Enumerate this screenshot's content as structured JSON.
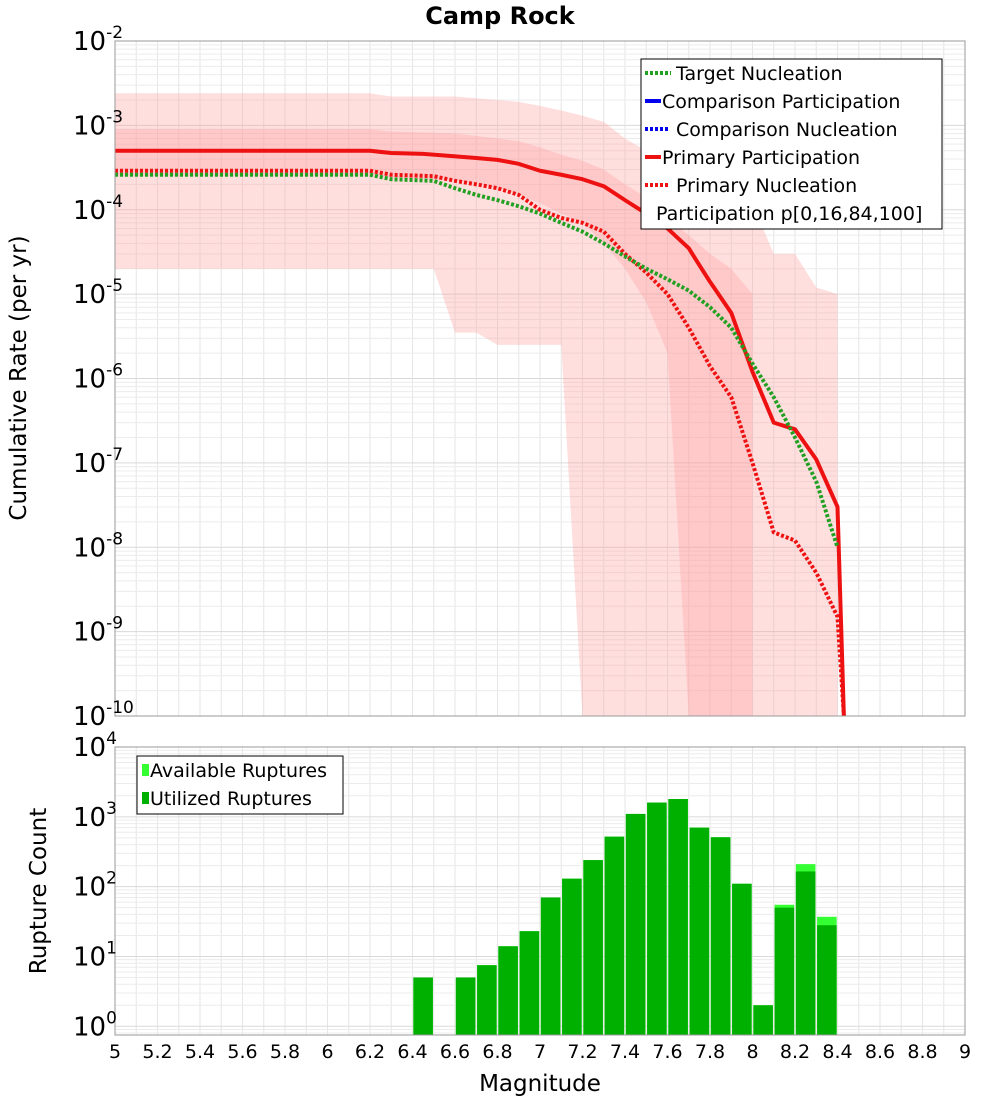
{
  "chart_data": [
    {
      "type": "line",
      "title": "Camp Rock",
      "xlabel": "",
      "ylabel": "Cumulative Rate (per yr)",
      "xlim": [
        5,
        9
      ],
      "ylim": [
        1e-10,
        0.01
      ],
      "yscale": "log",
      "grid": true,
      "legend_position": "top-right",
      "yticks": [
        {
          "base": "10",
          "exp": "-10"
        },
        {
          "base": "10",
          "exp": "-9"
        },
        {
          "base": "10",
          "exp": "-8"
        },
        {
          "base": "10",
          "exp": "-7"
        },
        {
          "base": "10",
          "exp": "-6"
        },
        {
          "base": "10",
          "exp": "-5"
        },
        {
          "base": "10",
          "exp": "-4"
        },
        {
          "base": "10",
          "exp": "-3"
        },
        {
          "base": "10",
          "exp": "-2"
        }
      ],
      "legend": [
        {
          "label": "Target Nucleation",
          "color": "#22a022",
          "style": "dotted"
        },
        {
          "label": "Comparison Participation",
          "color": "#0000ee",
          "style": "solid"
        },
        {
          "label": " Comparison Nucleation",
          "color": "#0000ee",
          "style": "dotted"
        },
        {
          "label": "Primary Participation",
          "color": "#ee1111",
          "style": "solid"
        },
        {
          "label": " Primary Nucleation",
          "color": "#ee1111",
          "style": "dotted"
        },
        {
          "label": "Participation p[0,16,84,100]",
          "color": "#ffffff",
          "style": "none"
        }
      ],
      "bands": [
        {
          "name": "p0-p100",
          "color": "#ff9999",
          "opacity": 0.32,
          "x": [
            5,
            6.2,
            6.3,
            6.5,
            6.6,
            6.7,
            6.8,
            6.9,
            7.0,
            7.1,
            7.2,
            7.3,
            7.4,
            7.5,
            7.6,
            7.7,
            7.8,
            7.9,
            8.0,
            8.1,
            8.2,
            8.3,
            8.4
          ],
          "upper": [
            0.0024,
            0.0024,
            0.0022,
            0.0022,
            0.0022,
            0.0021,
            0.002,
            0.0019,
            0.0017,
            0.0015,
            0.0013,
            0.0011,
            0.0007,
            0.0005,
            0.0003,
            0.0002,
            0.00018,
            0.00013,
            0.00012,
            3e-05,
            3e-05,
            1.2e-05,
            1e-05
          ],
          "lower": [
            2e-05,
            2e-05,
            2e-05,
            2e-05,
            3.5e-06,
            3.5e-06,
            2.5e-06,
            2.5e-06,
            2.5e-06,
            2.5e-06,
            1e-10,
            1e-10,
            1e-10,
            1e-10,
            1e-10,
            1e-10,
            1e-10,
            1e-10,
            1e-10,
            1e-10,
            1e-10,
            1e-10,
            1e-10
          ]
        },
        {
          "name": "p16-p84",
          "color": "#ff9999",
          "opacity": 0.3,
          "x": [
            5,
            6.2,
            6.3,
            6.6,
            6.7,
            6.8,
            6.9,
            7.0,
            7.1,
            7.2,
            7.3,
            7.4,
            7.5,
            7.6,
            7.7,
            7.8,
            7.9,
            8.0
          ],
          "upper": [
            0.0009,
            0.0009,
            0.00085,
            0.0008,
            0.00075,
            0.0007,
            0.00065,
            0.00055,
            0.00045,
            0.00038,
            0.0003,
            0.0002,
            0.00014,
            8e-05,
            5e-05,
            3e-05,
            2e-05,
            1e-05
          ],
          "lower": [
            0.00025,
            0.00025,
            0.00024,
            0.00022,
            0.0002,
            0.00018,
            0.00015,
            0.00012,
            9e-05,
            7e-05,
            4e-05,
            2e-05,
            8e-06,
            2e-06,
            1e-10,
            1e-10,
            1e-10,
            1e-10
          ]
        }
      ],
      "series": [
        {
          "name": "Primary Participation",
          "color": "#ee1111",
          "style": "solid",
          "x": [
            5,
            6.2,
            6.3,
            6.45,
            6.55,
            6.7,
            6.8,
            6.9,
            7.0,
            7.1,
            7.2,
            7.3,
            7.4,
            7.5,
            7.6,
            7.7,
            7.75,
            7.8,
            7.9,
            8.0,
            8.1,
            8.2,
            8.3,
            8.4,
            8.43
          ],
          "y": [
            0.0005,
            0.0005,
            0.00047,
            0.00046,
            0.00044,
            0.00041,
            0.00039,
            0.00035,
            0.00029,
            0.00026,
            0.00023,
            0.00019,
            0.00013,
            9e-05,
            6e-05,
            3.5e-05,
            2.2e-05,
            1.4e-05,
            6e-06,
            1.2e-06,
            3e-07,
            2.5e-07,
            1.1e-07,
            3e-08,
            1e-10
          ]
        },
        {
          "name": "Primary Nucleation",
          "color": "#ee1111",
          "style": "dotted",
          "x": [
            5,
            6.2,
            6.3,
            6.5,
            6.6,
            6.7,
            6.8,
            6.9,
            7.0,
            7.1,
            7.2,
            7.3,
            7.4,
            7.5,
            7.6,
            7.7,
            7.8,
            7.9,
            8.0,
            8.1,
            8.2,
            8.3,
            8.4,
            8.43
          ],
          "y": [
            0.00029,
            0.00029,
            0.00026,
            0.00025,
            0.00022,
            0.0002,
            0.00018,
            0.00015,
            0.0001,
            8e-05,
            7e-05,
            5.5e-05,
            3e-05,
            1.8e-05,
            1e-05,
            4e-06,
            1.4e-06,
            6e-07,
            1e-07,
            1.5e-08,
            1.2e-08,
            5e-09,
            1.5e-09,
            1e-10
          ]
        },
        {
          "name": "Target Nucleation",
          "color": "#22a022",
          "style": "dotted",
          "x": [
            5,
            6.2,
            6.3,
            6.5,
            6.6,
            6.7,
            6.8,
            6.9,
            7.0,
            7.1,
            7.2,
            7.3,
            7.4,
            7.5,
            7.6,
            7.7,
            7.8,
            7.9,
            8.0,
            8.1,
            8.2,
            8.3,
            8.4
          ],
          "y": [
            0.00026,
            0.00026,
            0.00023,
            0.00022,
            0.00018,
            0.00015,
            0.00013,
            0.00011,
            9e-05,
            7e-05,
            5.5e-05,
            4e-05,
            2.8e-05,
            2e-05,
            1.5e-05,
            1.1e-05,
            7e-06,
            4e-06,
            1.5e-06,
            6e-07,
            2e-07,
            6e-08,
            1e-08
          ]
        }
      ]
    },
    {
      "type": "bar",
      "title": "",
      "xlabel": "Magnitude",
      "ylabel": "Rupture Count",
      "xlim": [
        5,
        9
      ],
      "ylim": [
        0.75,
        10000
      ],
      "yscale": "log",
      "grid": true,
      "legend_position": "top-left",
      "xticks": [
        "5",
        "5.2",
        "5.4",
        "5.6",
        "5.8",
        "6",
        "6.2",
        "6.4",
        "6.6",
        "6.8",
        "7",
        "7.2",
        "7.4",
        "7.6",
        "7.8",
        "8",
        "8.2",
        "8.4",
        "8.6",
        "8.8",
        "9"
      ],
      "yticks": [
        {
          "base": "10",
          "exp": "0"
        },
        {
          "base": "10",
          "exp": "1"
        },
        {
          "base": "10",
          "exp": "2"
        },
        {
          "base": "10",
          "exp": "3"
        },
        {
          "base": "10",
          "exp": "4"
        }
      ],
      "legend": [
        {
          "label": "Available Ruptures",
          "color": "#33ff33"
        },
        {
          "label": "Utilized Ruptures",
          "color": "#00b000"
        }
      ],
      "categories": [
        6.45,
        6.65,
        6.75,
        6.85,
        6.95,
        7.05,
        7.15,
        7.25,
        7.35,
        7.45,
        7.55,
        7.65,
        7.75,
        7.85,
        7.95,
        8.05,
        8.15,
        8.25,
        8.35
      ],
      "series": [
        {
          "name": "Available Ruptures",
          "color": "#33ff33",
          "values": [
            5,
            5,
            7.5,
            14,
            23,
            70,
            130,
            240,
            520,
            1100,
            1600,
            1800,
            700,
            510,
            110,
            2,
            55,
            210,
            37
          ]
        },
        {
          "name": "Utilized Ruptures",
          "color": "#00b000",
          "values": [
            5,
            5,
            7.5,
            14,
            23,
            70,
            130,
            240,
            520,
            1100,
            1600,
            1800,
            700,
            510,
            110,
            2,
            50,
            165,
            28
          ]
        }
      ]
    }
  ]
}
